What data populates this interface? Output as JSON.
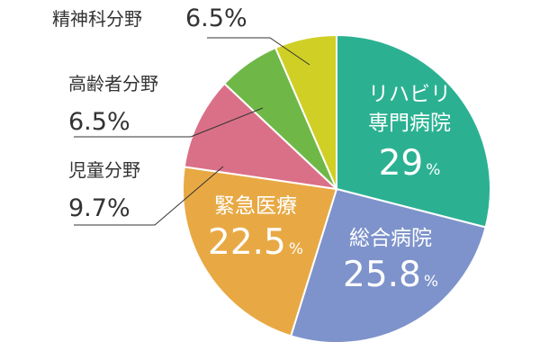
{
  "chart_data": {
    "type": "pie",
    "start_angle_deg": 0,
    "direction": "clockwise",
    "unit": "%",
    "slices": [
      {
        "name": "リハビリ専門病院",
        "label_lines": [
          "リハビリ",
          "専門病院"
        ],
        "value_text": "29",
        "value": 29.0,
        "color": "#2bb192",
        "label_position": "inside"
      },
      {
        "name": "総合病院",
        "label_lines": [
          "総合病院"
        ],
        "value_text": "25.8",
        "value": 25.8,
        "color": "#7e93cb",
        "label_position": "inside"
      },
      {
        "name": "緊急医療",
        "label_lines": [
          "緊急医療"
        ],
        "value_text": "22.5",
        "value": 22.5,
        "color": "#e8a944",
        "label_position": "inside"
      },
      {
        "name": "児童分野",
        "label_lines": [
          "児童分野"
        ],
        "value_text": "9.7",
        "value": 9.7,
        "color": "#da7087",
        "label_position": "outside"
      },
      {
        "name": "高齢者分野",
        "label_lines": [
          "高齢者分野"
        ],
        "value_text": "6.5",
        "value": 6.5,
        "color": "#6fb847",
        "label_position": "outside"
      },
      {
        "name": "精神科分野",
        "label_lines": [
          "精神科分野"
        ],
        "value_text": "6.5",
        "value": 6.5,
        "color": "#d0cf25",
        "label_position": "outside"
      }
    ]
  }
}
